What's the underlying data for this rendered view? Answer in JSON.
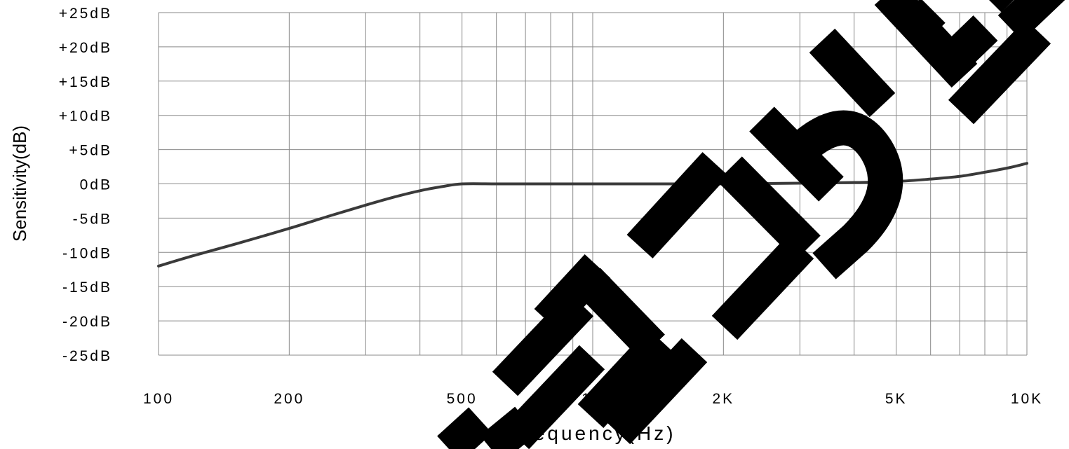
{
  "chart_data": {
    "type": "line",
    "title": "",
    "xlabel": "Frequency(Hz)",
    "ylabel": "Sensitivity(dB)",
    "x_scale": "log",
    "xlim": [
      100,
      10000
    ],
    "ylim": [
      -25,
      25
    ],
    "grid": true,
    "x_tick_values": [
      100,
      200,
      500,
      1000,
      2000,
      5000,
      10000
    ],
    "x_tick_labels": [
      "100",
      "200",
      "500",
      "1K",
      "2K",
      "5K",
      "10K"
    ],
    "y_tick_values": [
      25,
      20,
      15,
      10,
      5,
      0,
      -5,
      -10,
      -15,
      -20,
      -25
    ],
    "y_tick_labels": [
      "+25dB",
      "+20dB",
      "+15dB",
      "+10dB",
      "+5dB",
      "0dB",
      "-5dB",
      "-10dB",
      "-15dB",
      "-20dB",
      "-25dB"
    ],
    "series": [
      {
        "x": [
          100,
          120,
          150,
          200,
          250,
          300,
          350,
          400,
          450,
          500,
          600,
          700,
          800,
          1000,
          1500,
          2000,
          2500,
          3000,
          3500,
          4000,
          5000,
          6000,
          7000,
          8000,
          9000,
          10000
        ],
        "y": [
          -12,
          -10.5,
          -8.8,
          -6.5,
          -4.6,
          -3.1,
          -1.9,
          -1.0,
          -0.4,
          0,
          0,
          0,
          0,
          0,
          0,
          0,
          0.05,
          0.1,
          0.15,
          0.2,
          0.35,
          0.7,
          1.1,
          1.7,
          2.3,
          3.0
        ],
        "color": "#3a3a3a"
      }
    ]
  },
  "watermark": {
    "text": "DISCONTINUED",
    "color": "#000000"
  }
}
